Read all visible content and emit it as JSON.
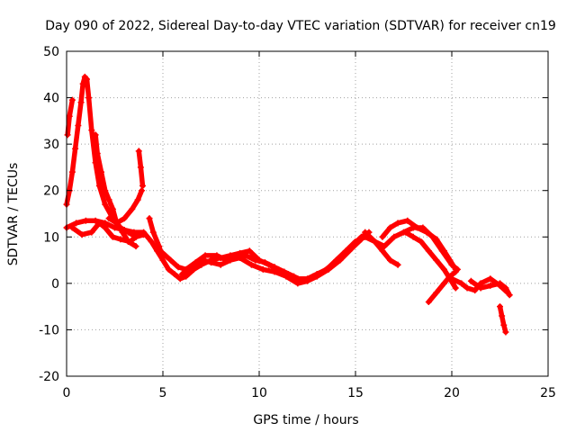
{
  "chart_data": {
    "type": "scatter",
    "title": "Day 090 of 2022, Sidereal Day-to-day VTEC variation (SDTVAR) for receiver cn19",
    "xlabel": "GPS time / hours",
    "ylabel": "SDTVAR / TECUs",
    "xlim": [
      0,
      25
    ],
    "ylim": [
      -20,
      50
    ],
    "xticks": [
      "0",
      "5",
      "10",
      "15",
      "20",
      "25"
    ],
    "yticks": [
      "-20",
      "-10",
      "0",
      "10",
      "20",
      "30",
      "40",
      "50"
    ],
    "grid": true,
    "marker": "+",
    "color": "#ff0000",
    "series": [
      {
        "name": "arc-1",
        "points": [
          [
            0.05,
            32
          ],
          [
            0.15,
            36
          ],
          [
            0.3,
            39.5
          ]
        ]
      },
      {
        "name": "arc-2",
        "points": [
          [
            0.0,
            17
          ],
          [
            0.15,
            20
          ],
          [
            0.3,
            24
          ],
          [
            0.45,
            29
          ],
          [
            0.6,
            34
          ],
          [
            0.75,
            39
          ],
          [
            0.85,
            43
          ],
          [
            0.95,
            44.5
          ],
          [
            1.05,
            44
          ],
          [
            1.15,
            40
          ],
          [
            1.3,
            33
          ],
          [
            1.5,
            26
          ],
          [
            1.7,
            21
          ],
          [
            2.0,
            17
          ],
          [
            2.4,
            14
          ],
          [
            2.8,
            12
          ],
          [
            3.2,
            11
          ],
          [
            3.6,
            10
          ],
          [
            4.0,
            10.5
          ]
        ]
      },
      {
        "name": "arc-3",
        "points": [
          [
            1.5,
            32
          ],
          [
            1.6,
            28
          ],
          [
            1.8,
            24
          ],
          [
            2.0,
            20
          ],
          [
            2.2,
            18
          ],
          [
            2.4,
            16
          ],
          [
            2.6,
            13
          ],
          [
            2.9,
            11
          ],
          [
            3.2,
            9
          ],
          [
            3.6,
            8
          ]
        ]
      },
      {
        "name": "arc-4",
        "points": [
          [
            0.0,
            12
          ],
          [
            0.5,
            13
          ],
          [
            1.0,
            13.5
          ],
          [
            1.5,
            13.5
          ],
          [
            2.0,
            13
          ],
          [
            2.5,
            12
          ],
          [
            3.0,
            11.5
          ],
          [
            3.5,
            11
          ],
          [
            4.0,
            11
          ],
          [
            4.4,
            9
          ],
          [
            4.7,
            7
          ],
          [
            5.0,
            5
          ],
          [
            5.3,
            3
          ],
          [
            5.6,
            2
          ],
          [
            5.9,
            1
          ],
          [
            6.2,
            1.5
          ],
          [
            6.6,
            3
          ],
          [
            7.0,
            4
          ],
          [
            7.5,
            5
          ],
          [
            8.0,
            5.5
          ],
          [
            8.5,
            6
          ],
          [
            9.0,
            6.5
          ],
          [
            9.5,
            7
          ],
          [
            10.0,
            5
          ],
          [
            10.5,
            4
          ],
          [
            11.0,
            3
          ],
          [
            11.5,
            2
          ],
          [
            12.0,
            1
          ],
          [
            12.5,
            1
          ],
          [
            13.0,
            2
          ],
          [
            13.5,
            3
          ],
          [
            14.0,
            5
          ],
          [
            14.5,
            7
          ],
          [
            15.0,
            9
          ],
          [
            15.5,
            10
          ],
          [
            16.0,
            9
          ],
          [
            16.5,
            8
          ],
          [
            17.0,
            10
          ],
          [
            17.5,
            11
          ],
          [
            18.0,
            12
          ],
          [
            18.5,
            12
          ],
          [
            19.0,
            10
          ],
          [
            19.5,
            7
          ],
          [
            20.0,
            4
          ],
          [
            20.3,
            3
          ]
        ]
      },
      {
        "name": "arc-5",
        "points": [
          [
            0.3,
            12
          ],
          [
            0.8,
            10.5
          ],
          [
            1.3,
            11
          ],
          [
            1.7,
            13
          ],
          [
            2.0,
            12
          ],
          [
            2.4,
            10
          ],
          [
            2.8,
            9.5
          ],
          [
            3.3,
            9
          ],
          [
            3.6,
            10
          ]
        ]
      },
      {
        "name": "arc-6",
        "points": [
          [
            2.2,
            14
          ],
          [
            2.6,
            13
          ],
          [
            3.0,
            14
          ],
          [
            3.4,
            16
          ],
          [
            3.7,
            18
          ],
          [
            3.9,
            20
          ]
        ]
      },
      {
        "name": "arc-7",
        "points": [
          [
            3.75,
            28.5
          ],
          [
            3.85,
            25
          ],
          [
            3.95,
            21
          ]
        ]
      },
      {
        "name": "arc-8",
        "points": [
          [
            4.3,
            14
          ],
          [
            4.5,
            11
          ],
          [
            4.8,
            8
          ],
          [
            5.0,
            5.5
          ]
        ]
      },
      {
        "name": "arc-9",
        "points": [
          [
            5.0,
            6.5
          ],
          [
            5.4,
            5
          ],
          [
            5.8,
            3.5
          ],
          [
            6.2,
            3
          ],
          [
            6.7,
            4.5
          ],
          [
            7.2,
            6
          ],
          [
            7.8,
            6
          ],
          [
            8.3,
            5
          ],
          [
            8.8,
            5.5
          ],
          [
            9.3,
            6
          ],
          [
            9.8,
            5
          ],
          [
            10.3,
            4.5
          ],
          [
            10.8,
            3.5
          ],
          [
            11.3,
            2.5
          ],
          [
            11.8,
            1.5
          ],
          [
            12.3,
            0.5
          ],
          [
            12.8,
            1.5
          ],
          [
            13.3,
            2.5
          ],
          [
            13.8,
            4
          ],
          [
            14.3,
            6
          ],
          [
            14.8,
            8
          ],
          [
            15.3,
            10
          ],
          [
            15.7,
            11
          ]
        ]
      },
      {
        "name": "arc-10",
        "points": [
          [
            6.0,
            2
          ],
          [
            6.6,
            3.5
          ],
          [
            7.1,
            5
          ],
          [
            7.5,
            4.5
          ],
          [
            8.0,
            4
          ],
          [
            8.5,
            5
          ],
          [
            9.0,
            5.5
          ],
          [
            9.6,
            4
          ],
          [
            10.2,
            3
          ],
          [
            10.8,
            2.5
          ],
          [
            11.4,
            1.5
          ],
          [
            12.0,
            0
          ],
          [
            12.5,
            0.5
          ],
          [
            13.0,
            1.5
          ],
          [
            13.6,
            3
          ],
          [
            14.2,
            5
          ],
          [
            14.8,
            7.5
          ],
          [
            15.3,
            9.5
          ]
        ]
      },
      {
        "name": "arc-11",
        "points": [
          [
            15.5,
            11
          ],
          [
            16.0,
            9
          ],
          [
            16.4,
            7
          ],
          [
            16.8,
            5
          ],
          [
            17.2,
            4
          ]
        ]
      },
      {
        "name": "arc-12",
        "points": [
          [
            16.4,
            10
          ],
          [
            16.8,
            12
          ],
          [
            17.2,
            13
          ],
          [
            17.7,
            13.5
          ],
          [
            18.2,
            12
          ],
          [
            18.7,
            11
          ],
          [
            19.2,
            9.5
          ],
          [
            19.6,
            7
          ],
          [
            19.9,
            5
          ],
          [
            20.2,
            3
          ]
        ]
      },
      {
        "name": "arc-13",
        "points": [
          [
            17.6,
            11
          ],
          [
            18.0,
            10
          ],
          [
            18.4,
            9
          ],
          [
            18.8,
            7
          ],
          [
            19.2,
            5
          ],
          [
            19.6,
            3
          ],
          [
            19.9,
            1
          ],
          [
            20.2,
            -1
          ]
        ]
      },
      {
        "name": "arc-14",
        "points": [
          [
            18.8,
            -4
          ],
          [
            19.2,
            -2
          ],
          [
            19.6,
            0
          ],
          [
            19.9,
            1.5
          ],
          [
            20.2,
            2.5
          ]
        ]
      },
      {
        "name": "arc-15",
        "points": [
          [
            20.0,
            1
          ],
          [
            20.5,
            0
          ],
          [
            20.8,
            -1
          ],
          [
            21.2,
            -1.5
          ],
          [
            21.5,
            0
          ],
          [
            22.0,
            1
          ],
          [
            22.5,
            -0.5
          ],
          [
            22.9,
            -2
          ]
        ]
      },
      {
        "name": "arc-16",
        "points": [
          [
            21.0,
            0.5
          ],
          [
            21.5,
            -1
          ],
          [
            22.0,
            -0.5
          ],
          [
            22.5,
            0
          ],
          [
            22.8,
            -1
          ],
          [
            23.0,
            -2.5
          ]
        ]
      },
      {
        "name": "arc-17",
        "points": [
          [
            22.5,
            -5
          ],
          [
            22.6,
            -7
          ],
          [
            22.7,
            -9
          ],
          [
            22.8,
            -10.5
          ]
        ]
      }
    ]
  }
}
